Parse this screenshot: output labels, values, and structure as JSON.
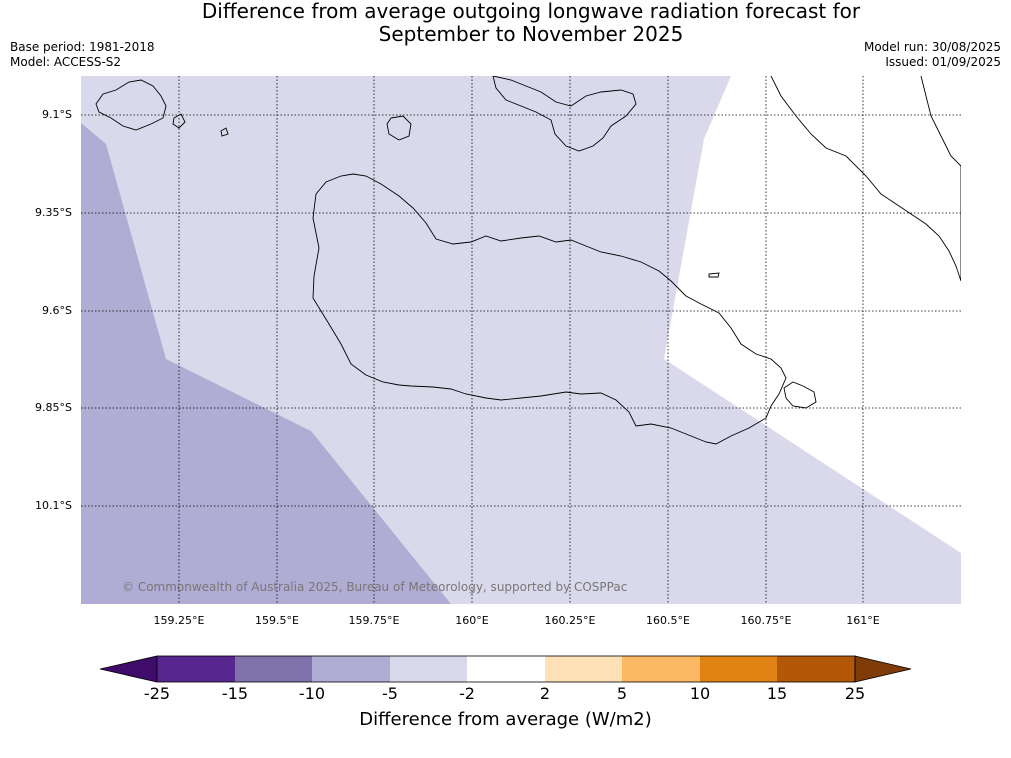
{
  "title": {
    "line1": "Difference from average outgoing longwave radiation forecast for",
    "line2": "September to November 2025"
  },
  "meta": {
    "base_period": "Base period: 1981-2018",
    "model": "Model: ACCESS-S2",
    "model_run": "Model run: 30/08/2025",
    "issued": "Issued: 01/09/2025"
  },
  "map": {
    "lat_labels": [
      "9.1°S",
      "9.35°S",
      "9.6°S",
      "9.85°S",
      "10.1°S"
    ],
    "lon_labels": [
      "159.25°E",
      "159.5°E",
      "159.75°E",
      "160°E",
      "160.25°E",
      "160.5°E",
      "160.75°E",
      "161°E"
    ],
    "copyright": "© Commonwealth of Australia 2025, Bureau of Meteorology, supported by COSPPac",
    "fill_colors": {
      "class_-10_-5": "#b0acd3",
      "class_-5_-2": "#d9d9eb",
      "class_-2_2": "#ffffff"
    }
  },
  "colorbar": {
    "label": "Difference from average (W/m2)",
    "ticks": [
      "-25",
      "-15",
      "-10",
      "-5",
      "-2",
      "2",
      "5",
      "10",
      "15",
      "25"
    ],
    "colors": [
      "#3f0c6b",
      "#57268e",
      "#8073ac",
      "#b0acd3",
      "#d9d9eb",
      "#ffffff",
      "#fee0b6",
      "#fdb863",
      "#e08214",
      "#b35806",
      "#7f3b08"
    ]
  }
}
